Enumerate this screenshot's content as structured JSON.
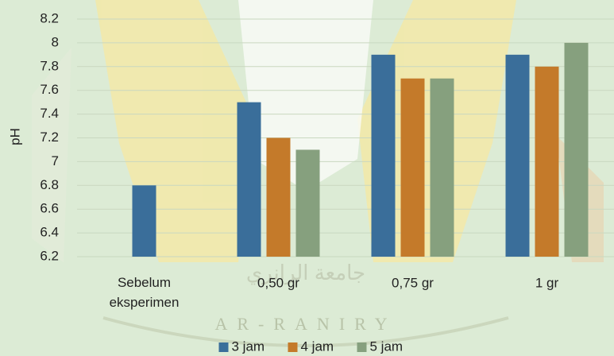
{
  "chart_data": {
    "type": "bar",
    "y_label": "pH",
    "categories": [
      "Sebelum eksperimen",
      "0,50 gr",
      "0,75 gr",
      "1 gr"
    ],
    "series": [
      {
        "name": "3 jam",
        "color": "#3a6e9a",
        "values": [
          6.8,
          7.5,
          7.9,
          7.9
        ]
      },
      {
        "name": "4 jam",
        "color": "#c47a2a",
        "values": [
          null,
          7.2,
          7.7,
          7.8
        ]
      },
      {
        "name": "5 jam",
        "color": "#86a07e",
        "values": [
          null,
          7.1,
          7.7,
          8.0
        ]
      }
    ],
    "ylim": [
      6.2,
      8.2
    ],
    "yticks": [
      6.2,
      6.4,
      6.6,
      6.8,
      7,
      7.2,
      7.4,
      7.6,
      7.8,
      8,
      8.2
    ],
    "grid": true,
    "legend": "bottom"
  },
  "watermark": {
    "latin": "AR-RANIRY",
    "arabic": "جامعة الرانري"
  }
}
